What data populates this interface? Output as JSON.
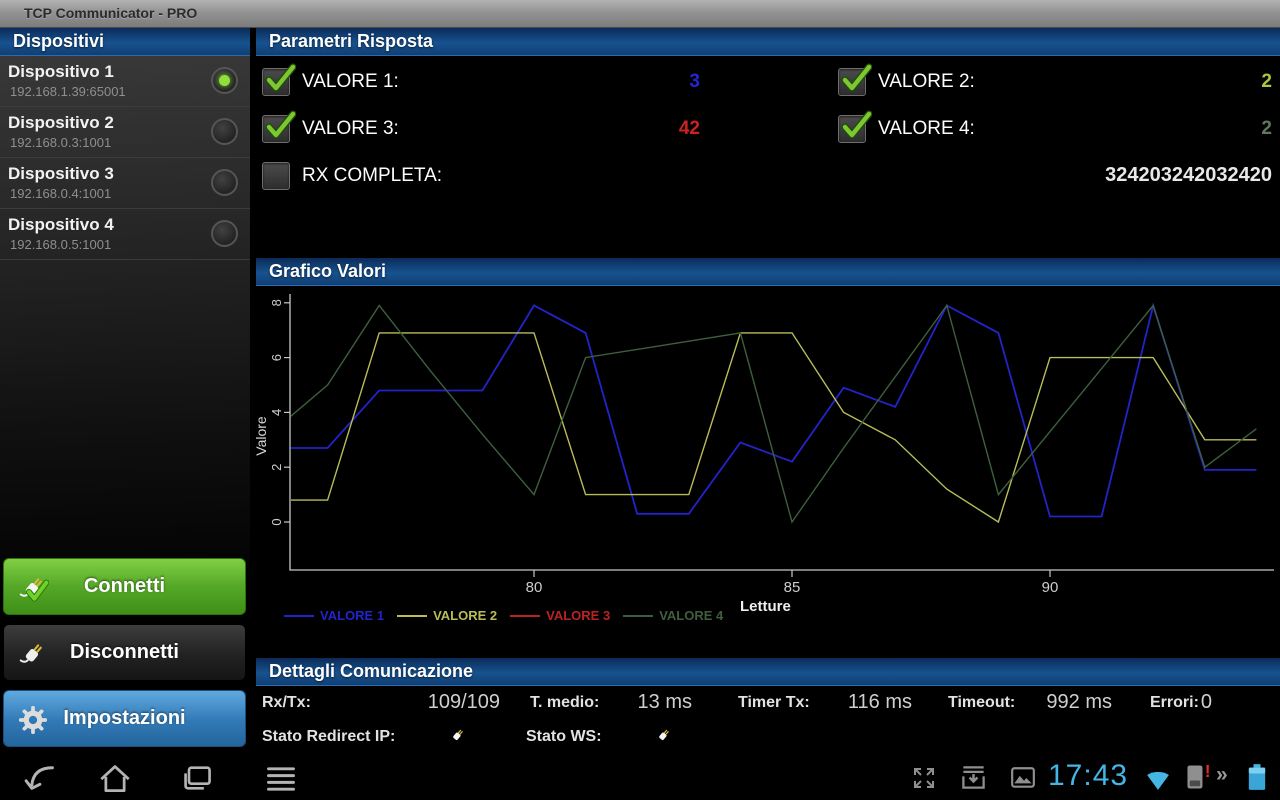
{
  "app": {
    "title": "TCP Communicator - PRO"
  },
  "devices_panel": {
    "title": "Dispositivi",
    "devices": [
      {
        "name": "Dispositivo 1",
        "address": "192.168.1.39:65001",
        "selected": true
      },
      {
        "name": "Dispositivo 2",
        "address": "192.168.0.3:1001",
        "selected": false
      },
      {
        "name": "Dispositivo 3",
        "address": "192.168.0.4:1001",
        "selected": false
      },
      {
        "name": "Dispositivo 4",
        "address": "192.168.0.5:1001",
        "selected": false
      }
    ],
    "buttons": {
      "connect": "Connetti",
      "disconnect": "Disconnetti",
      "settings": "Impostazioni"
    }
  },
  "params_panel": {
    "title": "Parametri Risposta",
    "params": [
      {
        "label": "VALORE 1:",
        "value": "3",
        "checked": true,
        "value_color": "#2525d8"
      },
      {
        "label": "VALORE 2:",
        "value": "2",
        "checked": true,
        "value_color": "#a9c93a"
      },
      {
        "label": "VALORE 3:",
        "value": "42",
        "checked": true,
        "value_color": "#cc2222"
      },
      {
        "label": "VALORE 4:",
        "value": "2",
        "checked": true,
        "value_color": "#5d7a5d"
      },
      {
        "label": "RX COMPLETA:",
        "value": "324203242032420",
        "checked": false,
        "value_color": "#e8e8e8"
      }
    ]
  },
  "chart_panel": {
    "title": "Grafico Valori"
  },
  "chart_data": {
    "type": "line",
    "title": "Grafico Valori",
    "xlabel": "Letture",
    "ylabel": "Valore",
    "x_ticks": [
      80,
      85,
      90
    ],
    "y_ticks": [
      0,
      2,
      4,
      6,
      8
    ],
    "xlim": [
      75.3,
      94.5
    ],
    "ylim": [
      0,
      8
    ],
    "grid": false,
    "legend_position": "bottom",
    "x": [
      75,
      76,
      77,
      78,
      79,
      80,
      81,
      82,
      83,
      84,
      85,
      86,
      87,
      88,
      89,
      90,
      91,
      92,
      93,
      94
    ],
    "series": [
      {
        "name": "VALORE 1",
        "color": "#2323cc",
        "values": [
          2.7,
          2.7,
          4.8,
          4.8,
          4.8,
          7.9,
          6.9,
          0.3,
          0.3,
          2.9,
          2.2,
          4.9,
          4.2,
          7.9,
          6.9,
          0.2,
          0.2,
          7.9,
          1.9,
          1.9
        ]
      },
      {
        "name": "VALORE 2",
        "color": "#b9bd58",
        "values": [
          0.8,
          0.8,
          6.9,
          6.9,
          6.9,
          6.9,
          1.0,
          1.0,
          1.0,
          6.9,
          6.9,
          4.0,
          3.0,
          1.2,
          0.0,
          6.0,
          6.0,
          6.0,
          3.0,
          3.0
        ]
      },
      {
        "name": "VALORE 3",
        "color": "#bb2222",
        "values": []
      },
      {
        "name": "VALORE 4",
        "color": "#3e5f3e",
        "values": [
          3.4,
          5.0,
          7.9,
          5.5,
          3.2,
          1.0,
          6.0,
          6.3,
          6.6,
          6.9,
          0.0,
          2.7,
          5.3,
          7.9,
          1.0,
          3.3,
          5.6,
          7.9,
          2.0,
          3.4
        ]
      }
    ]
  },
  "details_panel": {
    "title": "Dettagli Comunicazione",
    "stats": [
      {
        "label": "Rx/Tx:",
        "value": "109/109"
      },
      {
        "label": "T. medio:",
        "value": "13 ms"
      },
      {
        "label": "Timer Tx:",
        "value": "116 ms"
      },
      {
        "label": "Timeout:",
        "value": "992 ms"
      },
      {
        "label": "Errori:",
        "value": "0"
      }
    ],
    "statuses": [
      {
        "label": "Stato Redirect IP:",
        "icon": "plug-icon"
      },
      {
        "label": "Stato WS:",
        "icon": "plug-icon"
      }
    ]
  },
  "nav_bar": {
    "clock": "17:43",
    "chevrons": "»",
    "accent_color": "#33b5e5"
  }
}
